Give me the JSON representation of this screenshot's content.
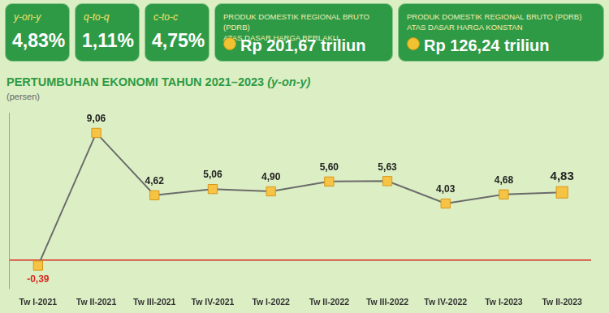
{
  "header": {
    "stats": [
      {
        "label": "y-on-y",
        "value": "4,83%"
      },
      {
        "label": "q-to-q",
        "value": "1,11%"
      },
      {
        "label": "c-to-c",
        "value": "4,75%"
      }
    ],
    "pdrb": [
      {
        "title": "PRODUK DOMESTIK REGIONAL BRUTO (PDRB)",
        "subtitle": "ATAS DASAR HARGA BERLAKU",
        "value": "Rp 201,67 triliun"
      },
      {
        "title": "PRODUK DOMESTIK REGIONAL BRUTO (PDRB)",
        "subtitle": "ATAS DASAR HARGA KONSTAN",
        "value": "Rp 126,24 triliun"
      }
    ]
  },
  "chart_data": {
    "type": "line",
    "title": "PERTUMBUHAN EKONOMI TAHUN 2021–2023 (y-on-y)",
    "subtitle": "(persen)",
    "categories": [
      "Tw I-2021",
      "Tw II-2021",
      "Tw III-2021",
      "Tw IV-2021",
      "Tw I-2022",
      "Tw II-2022",
      "Tw III-2022",
      "Tw IV-2022",
      "Tw I-2023",
      "Tw II-2023"
    ],
    "values": [
      -0.39,
      9.06,
      4.62,
      5.06,
      4.9,
      5.6,
      5.63,
      4.03,
      4.68,
      4.83
    ],
    "value_labels": [
      "-0,39",
      "9,06",
      "4,62",
      "5,06",
      "4,90",
      "5,60",
      "5,63",
      "4,03",
      "4,68",
      "4,83"
    ],
    "color": "#6b6b6b",
    "marker": "square",
    "ylim": [
      -2,
      10.5
    ],
    "yticks": [
      0
    ],
    "grid": true,
    "data_labels": true,
    "tick_labels": "x"
  }
}
